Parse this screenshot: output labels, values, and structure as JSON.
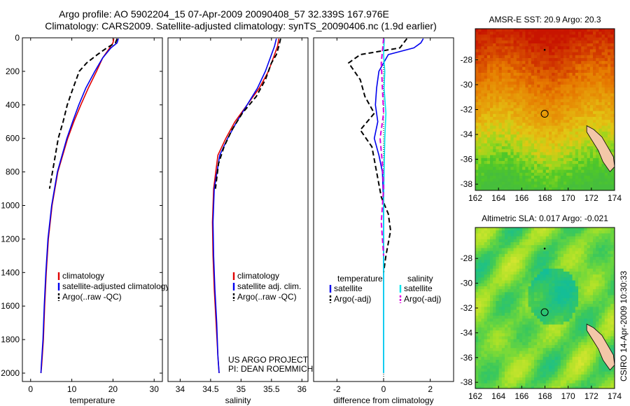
{
  "header": {
    "title_line1": "Argo profile: AO 5902204_15 07-Apr-2009 20090408_57 32.339S 167.976E",
    "title_line2": "Climatology: CARS2009. Satellite-adjusted climatology: synTS_20090406.nc (1.9d earlier)"
  },
  "footer": {
    "project_line1": "US ARGO PROJECT",
    "project_line2": "PI: DEAN ROEMMICH",
    "credit": "CSIRO 14-Apr-2009 10:30:33"
  },
  "colors": {
    "climatology": "#e00000",
    "satellite": "#0000ee",
    "argo": "#000000",
    "satellite_salinity": "#00e5ee",
    "argo_salinity": "#dd00dd"
  },
  "chart_data": [
    {
      "type": "line",
      "xlabel": "temperature",
      "ylabel": "",
      "xlim": [
        -2,
        32
      ],
      "ylim": [
        2050,
        0
      ],
      "xticks": [
        0,
        10,
        20,
        30
      ],
      "yticks": [
        0,
        200,
        400,
        600,
        800,
        1000,
        1200,
        1400,
        1600,
        1800,
        2000
      ],
      "legend": [
        "climatology",
        "satellite-adjusted climatology",
        "Argo(..raw -QC)"
      ],
      "legend_placement": "lower-right",
      "series": [
        {
          "name": "climatology",
          "style": "solid",
          "x": [
            20.2,
            20.0,
            19.2,
            17.5,
            16.0,
            14.0,
            12.2,
            10.5,
            9.0,
            6.6,
            5.2,
            4.3,
            3.8,
            3.4,
            3.1,
            2.7,
            2.5
          ],
          "y": [
            5,
            30,
            60,
            120,
            200,
            300,
            400,
            500,
            600,
            800,
            1000,
            1200,
            1400,
            1600,
            1800,
            1950,
            2000
          ]
        },
        {
          "name": "satellite-adjusted climatology",
          "style": "solid",
          "x": [
            21.3,
            21.0,
            19.5,
            17.5,
            15.6,
            13.4,
            11.7,
            10.2,
            8.8,
            6.5,
            5.1,
            4.2,
            3.7,
            3.3,
            3.0,
            2.6,
            2.5
          ],
          "y": [
            5,
            30,
            60,
            120,
            200,
            300,
            400,
            500,
            600,
            800,
            1000,
            1200,
            1400,
            1600,
            1800,
            1950,
            2000
          ]
        },
        {
          "name": "Argo(..raw -QC)",
          "style": "dashed",
          "x": [
            21.0,
            20.6,
            18.5,
            16.2,
            13.6,
            11.8,
            10.3,
            8.9,
            7.9,
            6.7,
            6.0,
            4.6
          ],
          "y": [
            5,
            30,
            60,
            100,
            150,
            200,
            300,
            400,
            500,
            600,
            700,
            900
          ]
        }
      ]
    },
    {
      "type": "line",
      "xlabel": "salinity",
      "ylabel": "",
      "xlim": [
        33.8,
        36.1
      ],
      "ylim": [
        2050,
        0
      ],
      "xticks": [
        34,
        34.5,
        35,
        35.5,
        36
      ],
      "yticks": [],
      "legend": [
        "climatology",
        "satellite adj. clim.",
        "Argo(..raw -QC)"
      ],
      "legend_placement": "lower-right",
      "series": [
        {
          "name": "climatology",
          "style": "solid",
          "x": [
            35.62,
            35.6,
            35.55,
            35.45,
            35.3,
            35.1,
            34.9,
            34.75,
            34.62,
            34.55,
            34.53,
            34.54,
            34.56,
            34.59,
            34.62,
            34.64
          ],
          "y": [
            5,
            50,
            100,
            200,
            300,
            400,
            500,
            600,
            700,
            900,
            1100,
            1300,
            1500,
            1700,
            1900,
            2000
          ]
        },
        {
          "name": "satellite adj. clim.",
          "style": "solid",
          "x": [
            35.58,
            35.55,
            35.5,
            35.4,
            35.27,
            35.1,
            34.93,
            34.78,
            34.65,
            34.56,
            34.54,
            34.55,
            34.57,
            34.6,
            34.62,
            34.64
          ],
          "y": [
            5,
            50,
            100,
            200,
            300,
            400,
            500,
            600,
            700,
            900,
            1100,
            1300,
            1500,
            1700,
            1900,
            2000
          ]
        },
        {
          "name": "Argo(..raw -QC)",
          "style": "dashed",
          "x": [
            35.65,
            35.62,
            35.58,
            35.5,
            35.4,
            35.25,
            35.02,
            34.85,
            34.72,
            34.63,
            34.58
          ],
          "y": [
            5,
            50,
            100,
            150,
            250,
            350,
            450,
            550,
            650,
            750,
            900
          ]
        }
      ]
    },
    {
      "type": "line",
      "xlabel": "difference from climatology",
      "ylabel": "",
      "xlim": [
        -3,
        3
      ],
      "ylim": [
        2050,
        0
      ],
      "xticks": [
        -2,
        0,
        2
      ],
      "yticks": [],
      "legend": [
        "temperature satellite",
        "temperature Argo(-adj)",
        "salinity satellite",
        "salinity Argo(-adj)"
      ],
      "legend_titles": [
        "temperature",
        "salinity"
      ],
      "legend_entries": [
        "satellite",
        "Argo(-adj)",
        "satellite",
        "Argo(-adj)"
      ],
      "legend_placement": "lower-center",
      "series": [
        {
          "name": "temperature satellite",
          "style": "solid",
          "x": [
            1.7,
            1.6,
            1.3,
            0.2,
            -0.2,
            -0.3,
            -0.35,
            -0.25,
            -0.4,
            -0.2,
            -0.05,
            0.0,
            0.0,
            0.0,
            0.0,
            0.0
          ],
          "y": [
            5,
            30,
            60,
            100,
            200,
            300,
            400,
            500,
            600,
            700,
            800,
            1000,
            1200,
            1500,
            1800,
            2000
          ]
        },
        {
          "name": "temperature Argo(-adj)",
          "style": "dashed",
          "x": [
            1.0,
            0.7,
            -1.0,
            -1.5,
            -1.0,
            -0.8,
            -0.4,
            -1.0,
            -0.5,
            -0.3,
            -0.1,
            0.2,
            0.3,
            0.1,
            0.0
          ],
          "y": [
            5,
            60,
            100,
            150,
            250,
            350,
            450,
            550,
            650,
            800,
            950,
            1050,
            1150,
            1300,
            1400
          ]
        },
        {
          "name": "salinity satellite",
          "style": "solid",
          "x": [
            0.03,
            0.0,
            0.05,
            0.02,
            0.1,
            0.05,
            0.02,
            0.0,
            0.0,
            0.0
          ],
          "y": [
            5,
            100,
            200,
            300,
            450,
            600,
            800,
            1000,
            1500,
            2000
          ]
        },
        {
          "name": "salinity Argo(-adj)",
          "style": "dashed",
          "x": [
            0.0,
            -0.1,
            -0.05,
            0.0,
            -0.15,
            -0.05,
            0.0,
            -0.1,
            0.0
          ],
          "y": [
            5,
            150,
            300,
            450,
            600,
            750,
            900,
            1100,
            1300
          ]
        }
      ]
    },
    {
      "type": "heatmap",
      "title": "AMSR-E SST: 20.9 Argo: 20.3",
      "xlim": [
        162,
        174
      ],
      "ylim": [
        -38.5,
        -25.5
      ],
      "xticks": [
        162,
        164,
        166,
        168,
        170,
        172,
        174
      ],
      "yticks": [
        -28,
        -30,
        -32,
        -34,
        -36,
        -38
      ],
      "marker": {
        "x": 167.976,
        "y": -32.339
      }
    },
    {
      "type": "heatmap",
      "title": "Altimetric SLA: 0.017 Argo: -0.021",
      "xlim": [
        162,
        174
      ],
      "ylim": [
        -38.5,
        -25.5
      ],
      "xticks": [
        162,
        164,
        166,
        168,
        170,
        172,
        174
      ],
      "yticks": [
        -28,
        -30,
        -32,
        -34,
        -36,
        -38
      ],
      "marker": {
        "x": 167.976,
        "y": -32.339
      }
    }
  ]
}
